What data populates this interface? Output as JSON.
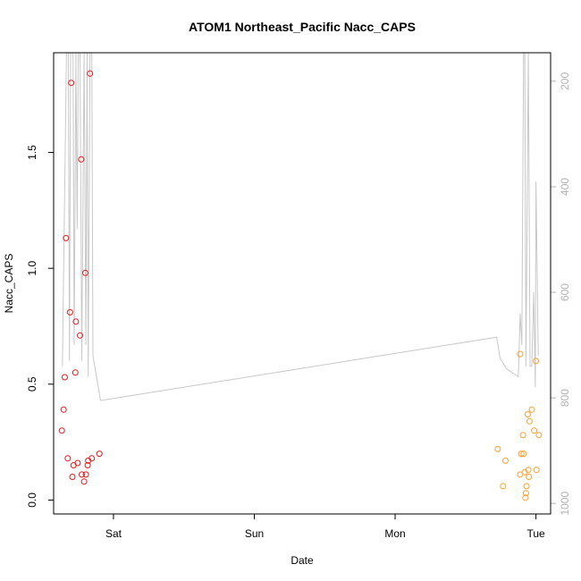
{
  "chart_data": {
    "type": "scatter",
    "title": "ATOM1 Northeast_Pacific Nacc_CAPS",
    "xlabel": "Date",
    "ylabel": "Nacc_CAPS",
    "x_tick_labels": [
      "Sat",
      "Sun",
      "Mon",
      "Tue"
    ],
    "x_ticks_hours": [
      24,
      48,
      72,
      96
    ],
    "xlim_hours": [
      13.8,
      98.5
    ],
    "ylim": [
      -0.06,
      1.93
    ],
    "y_ticks": [
      0.0,
      0.5,
      1.0,
      1.5
    ],
    "y_tick_labels": [
      "0.0",
      "0.5",
      "1.0",
      "1.5"
    ],
    "right_axis": {
      "ylim": [
        1020,
        146
      ],
      "ticks": [
        200,
        400,
        600,
        800,
        1000
      ],
      "tick_labels": [
        "200",
        "400",
        "600",
        "800",
        "1000"
      ],
      "color": "#b3b3b3"
    },
    "colors": {
      "series_red": "#e41a1c",
      "series_orange": "#ff9f2f",
      "line_gray": "#c8c8c8",
      "axis": "#000000"
    },
    "series": [
      {
        "color": "#e41a1c",
        "points": [
          [
            15.2,
            0.3
          ],
          [
            15.5,
            0.39
          ],
          [
            15.7,
            0.53
          ],
          [
            15.9,
            1.13
          ],
          [
            16.2,
            0.18
          ],
          [
            16.6,
            0.81
          ],
          [
            16.8,
            1.8
          ],
          [
            17.0,
            0.1
          ],
          [
            17.2,
            0.15
          ],
          [
            17.5,
            0.55
          ],
          [
            17.6,
            0.77
          ],
          [
            17.9,
            0.16
          ],
          [
            18.3,
            0.71
          ],
          [
            18.5,
            1.47
          ],
          [
            18.6,
            0.11
          ],
          [
            19.0,
            0.08
          ],
          [
            19.2,
            0.98
          ],
          [
            19.3,
            0.11
          ],
          [
            19.6,
            0.15
          ],
          [
            19.7,
            0.17
          ],
          [
            20.0,
            1.84
          ],
          [
            20.3,
            0.18
          ],
          [
            21.6,
            0.2
          ]
        ]
      },
      {
        "color": "#ff9f2f",
        "points": [
          [
            89.5,
            0.22
          ],
          [
            90.4,
            0.06
          ],
          [
            90.8,
            0.17
          ],
          [
            93.3,
            0.63
          ],
          [
            93.3,
            0.11
          ],
          [
            93.5,
            0.2
          ],
          [
            93.8,
            0.28
          ],
          [
            93.9,
            0.2
          ],
          [
            94.1,
            0.12
          ],
          [
            94.2,
            0.01
          ],
          [
            94.3,
            0.03
          ],
          [
            94.4,
            0.06
          ],
          [
            94.6,
            0.37
          ],
          [
            94.7,
            0.13
          ],
          [
            94.8,
            0.1
          ],
          [
            94.9,
            0.34
          ],
          [
            95.3,
            0.39
          ],
          [
            95.7,
            0.3
          ],
          [
            96.0,
            0.6
          ],
          [
            96.1,
            0.13
          ],
          [
            96.5,
            0.28
          ]
        ]
      }
    ],
    "gray_line_right_axis": [
      [
        15.3,
        740
      ],
      [
        16.0,
        146
      ],
      [
        16.3,
        146
      ],
      [
        16.5,
        730
      ],
      [
        16.7,
        146
      ],
      [
        17.1,
        146
      ],
      [
        17.3,
        700
      ],
      [
        17.6,
        146
      ],
      [
        17.8,
        480
      ],
      [
        18.0,
        146
      ],
      [
        18.3,
        146
      ],
      [
        18.6,
        730
      ],
      [
        19.0,
        146
      ],
      [
        19.3,
        700
      ],
      [
        19.5,
        146
      ],
      [
        19.7,
        760
      ],
      [
        20.0,
        146
      ],
      [
        20.3,
        146
      ],
      [
        20.5,
        720
      ],
      [
        21.8,
        805
      ],
      [
        89.3,
        685
      ],
      [
        89.9,
        725
      ],
      [
        91.0,
        745
      ],
      [
        93.0,
        760
      ],
      [
        93.3,
        640
      ],
      [
        93.6,
        700
      ],
      [
        93.9,
        146
      ],
      [
        94.1,
        146
      ],
      [
        94.3,
        740
      ],
      [
        94.7,
        146
      ],
      [
        95.0,
        740
      ],
      [
        95.3,
        740
      ],
      [
        95.6,
        600
      ],
      [
        95.9,
        780
      ],
      [
        96.0,
        390
      ],
      [
        96.4,
        720
      ]
    ]
  }
}
